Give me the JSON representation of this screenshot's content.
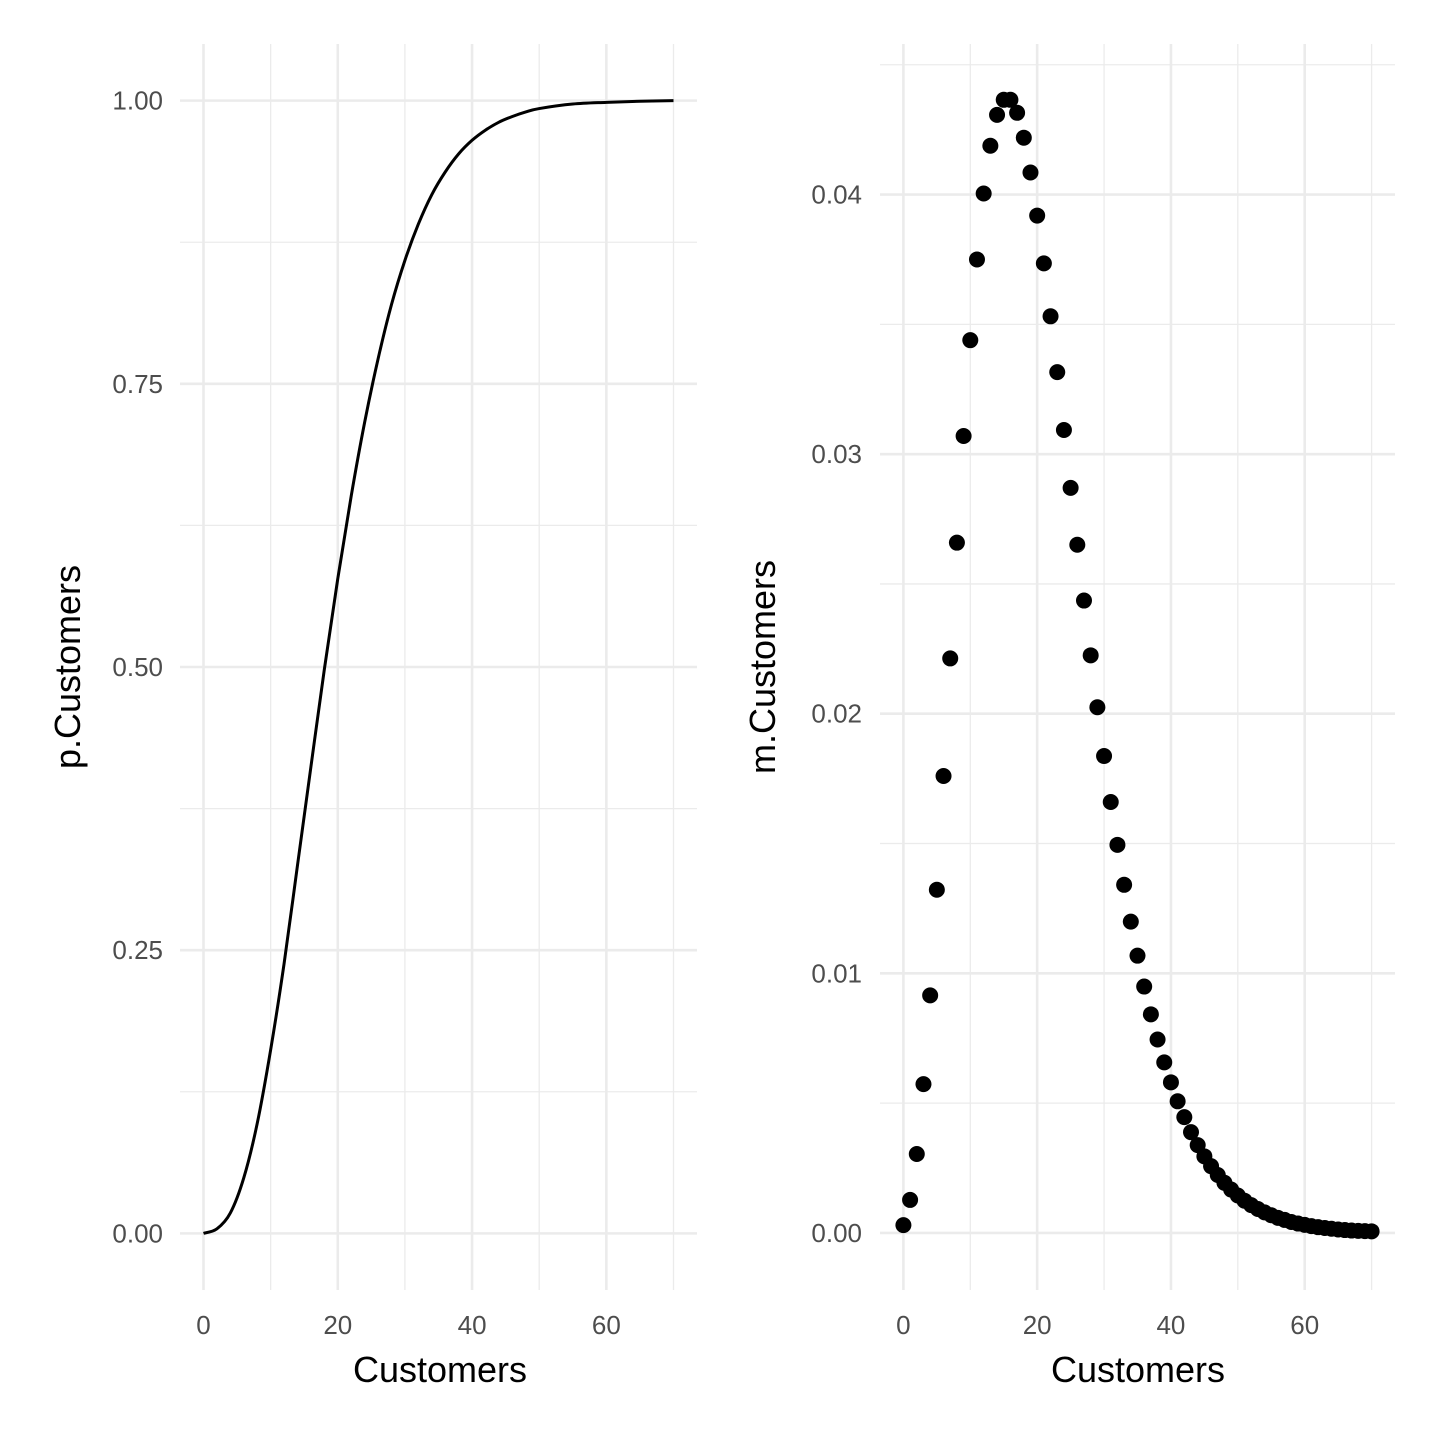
{
  "chart_data": [
    {
      "type": "line",
      "xlabel": "Customers",
      "ylabel": "p.Customers",
      "xlim": [
        -3.5,
        73.5
      ],
      "ylim": [
        -0.05,
        1.05
      ],
      "x_ticks": [
        0,
        20,
        40,
        60
      ],
      "x_tick_labels": [
        "0",
        "20",
        "40",
        "60"
      ],
      "y_ticks": [
        0,
        0.25,
        0.5,
        0.75,
        1
      ],
      "y_tick_labels": [
        "0.00",
        "0.25",
        "0.50",
        "0.75",
        "1.00"
      ],
      "grid": true,
      "x": [
        0,
        2,
        4,
        6,
        8,
        10,
        12,
        14,
        16,
        18,
        20,
        22,
        24,
        26,
        28,
        30,
        32,
        34,
        36,
        38,
        40,
        42,
        44,
        46,
        48,
        50,
        55,
        60,
        65,
        70
      ],
      "y": [
        0,
        0.004,
        0.018,
        0.049,
        0.097,
        0.162,
        0.238,
        0.325,
        0.412,
        0.498,
        0.578,
        0.651,
        0.716,
        0.772,
        0.82,
        0.859,
        0.891,
        0.917,
        0.937,
        0.953,
        0.965,
        0.974,
        0.981,
        0.986,
        0.99,
        0.993,
        0.997,
        0.9985,
        0.9995,
        1.0
      ]
    },
    {
      "type": "scatter",
      "xlabel": "Customers",
      "ylabel": "m.Customers",
      "xlim": [
        -3.5,
        73.5
      ],
      "ylim": [
        -0.0022,
        0.0458
      ],
      "x_ticks": [
        0,
        20,
        40,
        60
      ],
      "x_tick_labels": [
        "0",
        "20",
        "40",
        "60"
      ],
      "y_ticks": [
        0,
        0.01,
        0.02,
        0.03,
        0.04
      ],
      "y_tick_labels": [
        "0.00",
        "0.01",
        "0.02",
        "0.03",
        "0.04"
      ],
      "grid": true,
      "x_start": 0,
      "y": [
        0.0003,
        0.00127,
        0.00304,
        0.00573,
        0.00915,
        0.01322,
        0.0176,
        0.02213,
        0.02659,
        0.0307,
        0.03439,
        0.0375,
        0.04004,
        0.04188,
        0.04307,
        0.04365,
        0.04365,
        0.04315,
        0.04219,
        0.04085,
        0.03919,
        0.03735,
        0.03531,
        0.03316,
        0.03093,
        0.0287,
        0.02651,
        0.02436,
        0.02225,
        0.02025,
        0.01837,
        0.0166,
        0.01495,
        0.01341,
        0.01199,
        0.01068,
        0.00949,
        0.00842,
        0.00745,
        0.00657,
        0.0058,
        0.00507,
        0.00446,
        0.00388,
        0.00338,
        0.00295,
        0.00257,
        0.00223,
        0.00193,
        0.00167,
        0.00144,
        0.00124,
        0.00107,
        0.00092,
        0.00079,
        0.00068,
        0.00058,
        0.0005,
        0.00042,
        0.00036,
        0.00031,
        0.00026,
        0.00022,
        0.00019,
        0.00016,
        0.00013,
        0.00011,
        9e-05,
        8e-05,
        7e-05,
        6e-05
      ]
    }
  ]
}
